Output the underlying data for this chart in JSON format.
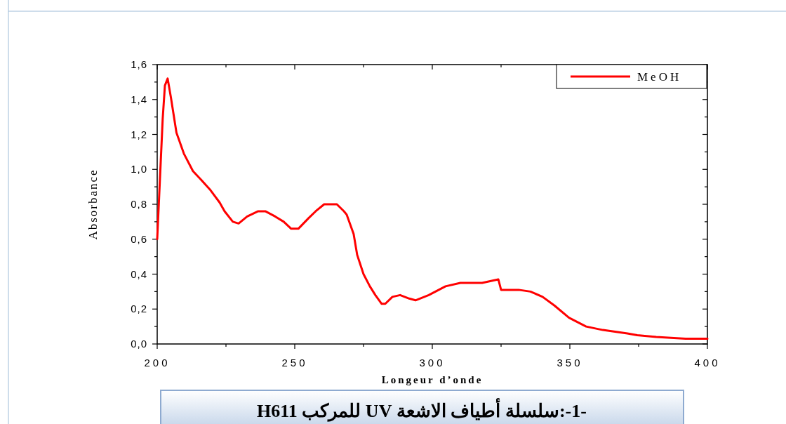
{
  "chart_data": {
    "type": "line",
    "xlabel": "Longeur d’onde",
    "ylabel": "Absorbance",
    "annotations": [
      "-1-:سلسلة أطياف الاشعة UV للمركب H611"
    ],
    "xlim": [
      200,
      400
    ],
    "ylim": [
      0,
      1.6
    ],
    "xticks": [
      200,
      {
        "value": 225,
        "label": null
      },
      250,
      {
        "value": 275,
        "label": null
      },
      300,
      {
        "value": 325,
        "label": null
      },
      350,
      {
        "value": 375,
        "label": null
      },
      400
    ],
    "yticks": [
      {
        "value": 0,
        "label": "0,0"
      },
      {
        "value": 0.1,
        "label": null
      },
      {
        "value": 0.2,
        "label": "0,2"
      },
      {
        "value": 0.3,
        "label": null
      },
      {
        "value": 0.4,
        "label": "0,4"
      },
      {
        "value": 0.5,
        "label": null
      },
      {
        "value": 0.6,
        "label": "0,6"
      },
      {
        "value": 0.7,
        "label": null
      },
      {
        "value": 0.8,
        "label": "0,8"
      },
      {
        "value": 0.9,
        "label": null
      },
      {
        "value": 1.0,
        "label": "1,0"
      },
      {
        "value": 1.1,
        "label": null
      },
      {
        "value": 1.2,
        "label": "1,2"
      },
      {
        "value": 1.3,
        "label": null
      },
      {
        "value": 1.4,
        "label": "1,4"
      },
      {
        "value": 1.5,
        "label": null
      },
      {
        "value": 1.6,
        "label": "1,6"
      }
    ],
    "grid": false,
    "legend": "top right",
    "marker": "none",
    "line_style": "solid",
    "series": [
      {
        "name": "MeOH",
        "color": "#ff0000",
        "x": [
          200,
          202,
          202.8,
          203.8,
          205,
          207,
          209.7,
          213,
          216,
          219.4,
          222.7,
          224.5,
          227.5,
          229.6,
          232.7,
          236.7,
          239.3,
          242.9,
          246,
          248.7,
          251.3,
          255,
          257.6,
          260.7,
          262.8,
          265.3,
          267.9,
          268.9,
          271.4,
          272.7,
          275,
          277.3,
          279.3,
          281.6,
          282.9,
          285.5,
          288.3,
          291.6,
          293.9,
          298.7,
          304.8,
          310.2,
          313.8,
          318.1,
          324,
          325,
          331.4,
          335.7,
          340.1,
          344.4,
          349.7,
          355.9,
          362,
          370.9,
          374.5,
          381.4,
          392.1,
          400
        ],
        "values": [
          0.6,
          1.29,
          1.48,
          1.52,
          1.41,
          1.21,
          1.09,
          0.99,
          0.94,
          0.88,
          0.81,
          0.76,
          0.7,
          0.69,
          0.73,
          0.76,
          0.76,
          0.73,
          0.7,
          0.66,
          0.66,
          0.72,
          0.76,
          0.8,
          0.8,
          0.8,
          0.76,
          0.74,
          0.63,
          0.51,
          0.4,
          0.33,
          0.28,
          0.23,
          0.23,
          0.27,
          0.28,
          0.26,
          0.25,
          0.28,
          0.33,
          0.35,
          0.35,
          0.35,
          0.37,
          0.31,
          0.31,
          0.3,
          0.27,
          0.22,
          0.15,
          0.1,
          0.08,
          0.06,
          0.05,
          0.04,
          0.03,
          0.03
        ]
      }
    ]
  }
}
